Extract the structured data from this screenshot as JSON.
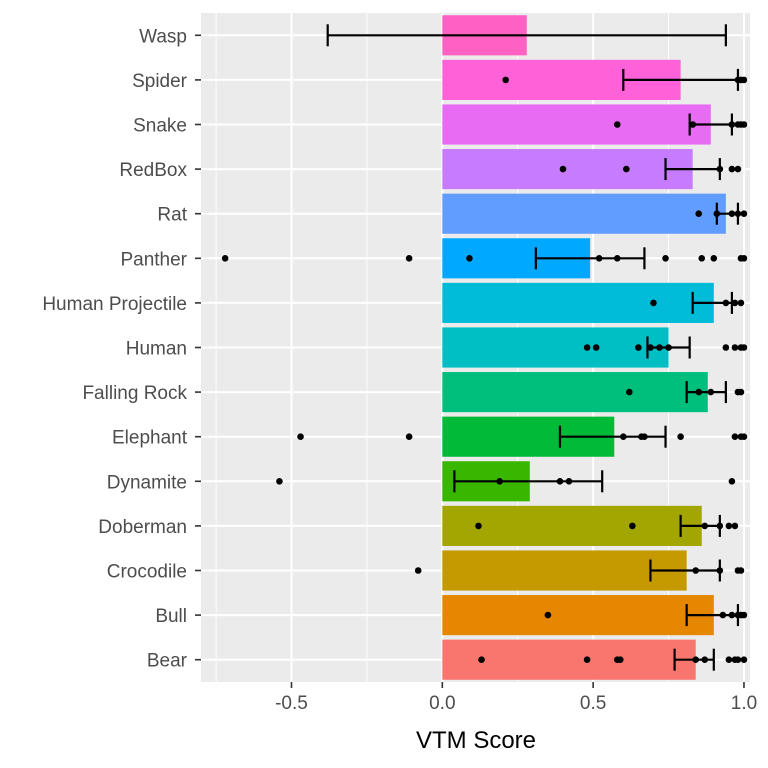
{
  "chart_data": {
    "type": "bar",
    "orientation": "horizontal",
    "title": "",
    "xlabel": "VTM Score",
    "ylabel": "",
    "xlim": [
      -0.8,
      1.02
    ],
    "x_ticks": [
      -0.5,
      0.0,
      0.5,
      1.0
    ],
    "x_tick_labels": [
      "-0.5",
      "0.0",
      "0.5",
      "1.0"
    ],
    "grid": true,
    "legend": "none",
    "categories": [
      "Wasp",
      "Spider",
      "Snake",
      "RedBox",
      "Rat",
      "Panther",
      "Human Projectile",
      "Human",
      "Falling Rock",
      "Elephant",
      "Dynamite",
      "Doberman",
      "Crocodile",
      "Bull",
      "Bear"
    ],
    "colors": [
      "#FF61C3",
      "#FF61D8",
      "#E76BF3",
      "#C77CFF",
      "#619CFF",
      "#00A9FF",
      "#00BCD8",
      "#00BFC4",
      "#00BF7D",
      "#00BA38",
      "#39B600",
      "#A3A500",
      "#C49A00",
      "#E58700",
      "#F8766D"
    ],
    "values": [
      0.28,
      0.79,
      0.89,
      0.83,
      0.94,
      0.49,
      0.9,
      0.75,
      0.88,
      0.57,
      0.29,
      0.86,
      0.81,
      0.9,
      0.84
    ],
    "error_bars": [
      [
        -0.38,
        0.94
      ],
      [
        0.6,
        0.98
      ],
      [
        0.82,
        0.96
      ],
      [
        0.74,
        0.92
      ],
      [
        0.91,
        0.98
      ],
      [
        0.31,
        0.67
      ],
      [
        0.83,
        0.96
      ],
      [
        0.68,
        0.82
      ],
      [
        0.81,
        0.94
      ],
      [
        0.39,
        0.74
      ],
      [
        0.04,
        0.53
      ],
      [
        0.79,
        0.92
      ],
      [
        0.69,
        0.92
      ],
      [
        0.81,
        0.98
      ],
      [
        0.77,
        0.9
      ]
    ],
    "points": [
      [],
      [
        0.21,
        0.98,
        0.99,
        1.0
      ],
      [
        0.58,
        0.83,
        0.96,
        0.98,
        0.99,
        1.0
      ],
      [
        0.4,
        0.61,
        0.92,
        0.96,
        0.98
      ],
      [
        0.85,
        0.91,
        0.96,
        0.98,
        1.0
      ],
      [
        -0.72,
        -0.11,
        0.09,
        0.52,
        0.58,
        0.74,
        0.86,
        0.9,
        0.99,
        1.0
      ],
      [
        0.7,
        0.94,
        0.97,
        0.99
      ],
      [
        0.48,
        0.51,
        0.65,
        0.69,
        0.72,
        0.75,
        0.94,
        0.97,
        0.99,
        1.0
      ],
      [
        0.62,
        0.85,
        0.89,
        0.98,
        0.99
      ],
      [
        -0.47,
        -0.11,
        0.6,
        0.66,
        0.67,
        0.79,
        0.97,
        0.99,
        1.0
      ],
      [
        -0.54,
        0.19,
        0.39,
        0.42,
        0.96
      ],
      [
        0.12,
        0.63,
        0.87,
        0.92,
        0.95,
        0.97
      ],
      [
        -0.08,
        0.84,
        0.92,
        0.98,
        0.99
      ],
      [
        0.35,
        0.93,
        0.96,
        0.98,
        0.99,
        1.0
      ],
      [
        0.13,
        0.48,
        0.58,
        0.59,
        0.84,
        0.87,
        0.95,
        0.97,
        0.98,
        1.0
      ]
    ]
  }
}
